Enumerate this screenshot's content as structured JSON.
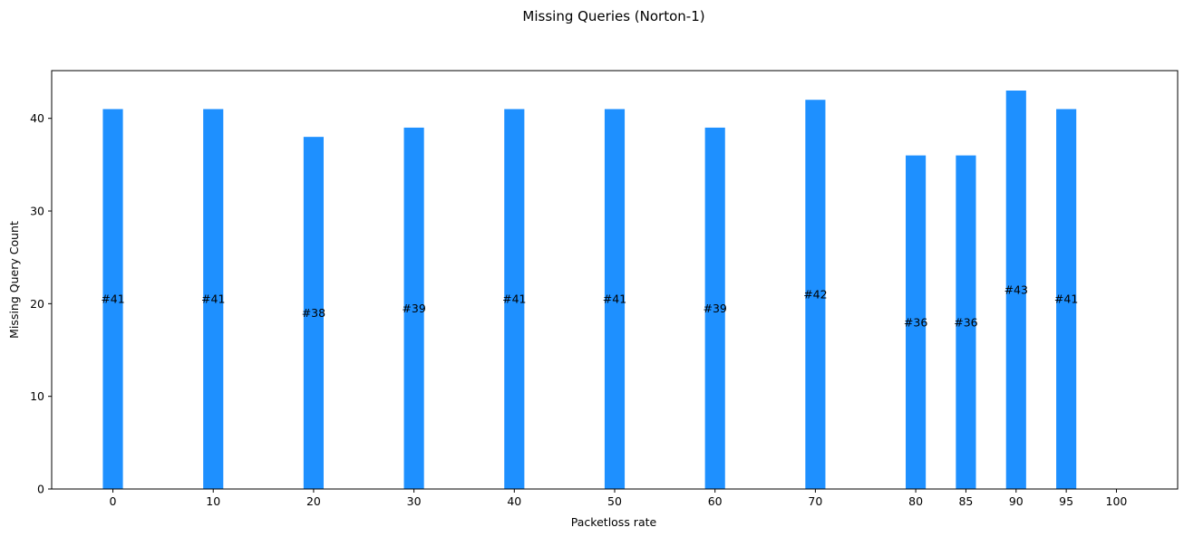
{
  "chart_data": {
    "type": "bar",
    "title": "Missing Queries (Norton-1)",
    "xlabel": "Packetloss rate",
    "ylabel": "Missing Query Count",
    "x": [
      0,
      10,
      20,
      30,
      40,
      50,
      60,
      70,
      80,
      85,
      90,
      95
    ],
    "values": [
      41,
      41,
      38,
      39,
      41,
      41,
      39,
      42,
      36,
      36,
      43,
      41
    ],
    "data_labels": [
      "#41",
      "#41",
      "#38",
      "#39",
      "#41",
      "#41",
      "#39",
      "#42",
      "#36",
      "#36",
      "#43",
      "#41"
    ],
    "x_ticks": [
      0,
      10,
      20,
      30,
      40,
      50,
      60,
      70,
      80,
      85,
      90,
      95,
      100
    ],
    "y_ticks": [
      0,
      10,
      20,
      30,
      40
    ],
    "xlim": [
      -6.1,
      106.1
    ],
    "ylim": [
      0,
      45.15
    ],
    "bar_width": 2,
    "bar_color": "#1E90FF",
    "grid": false,
    "legend": "none"
  }
}
